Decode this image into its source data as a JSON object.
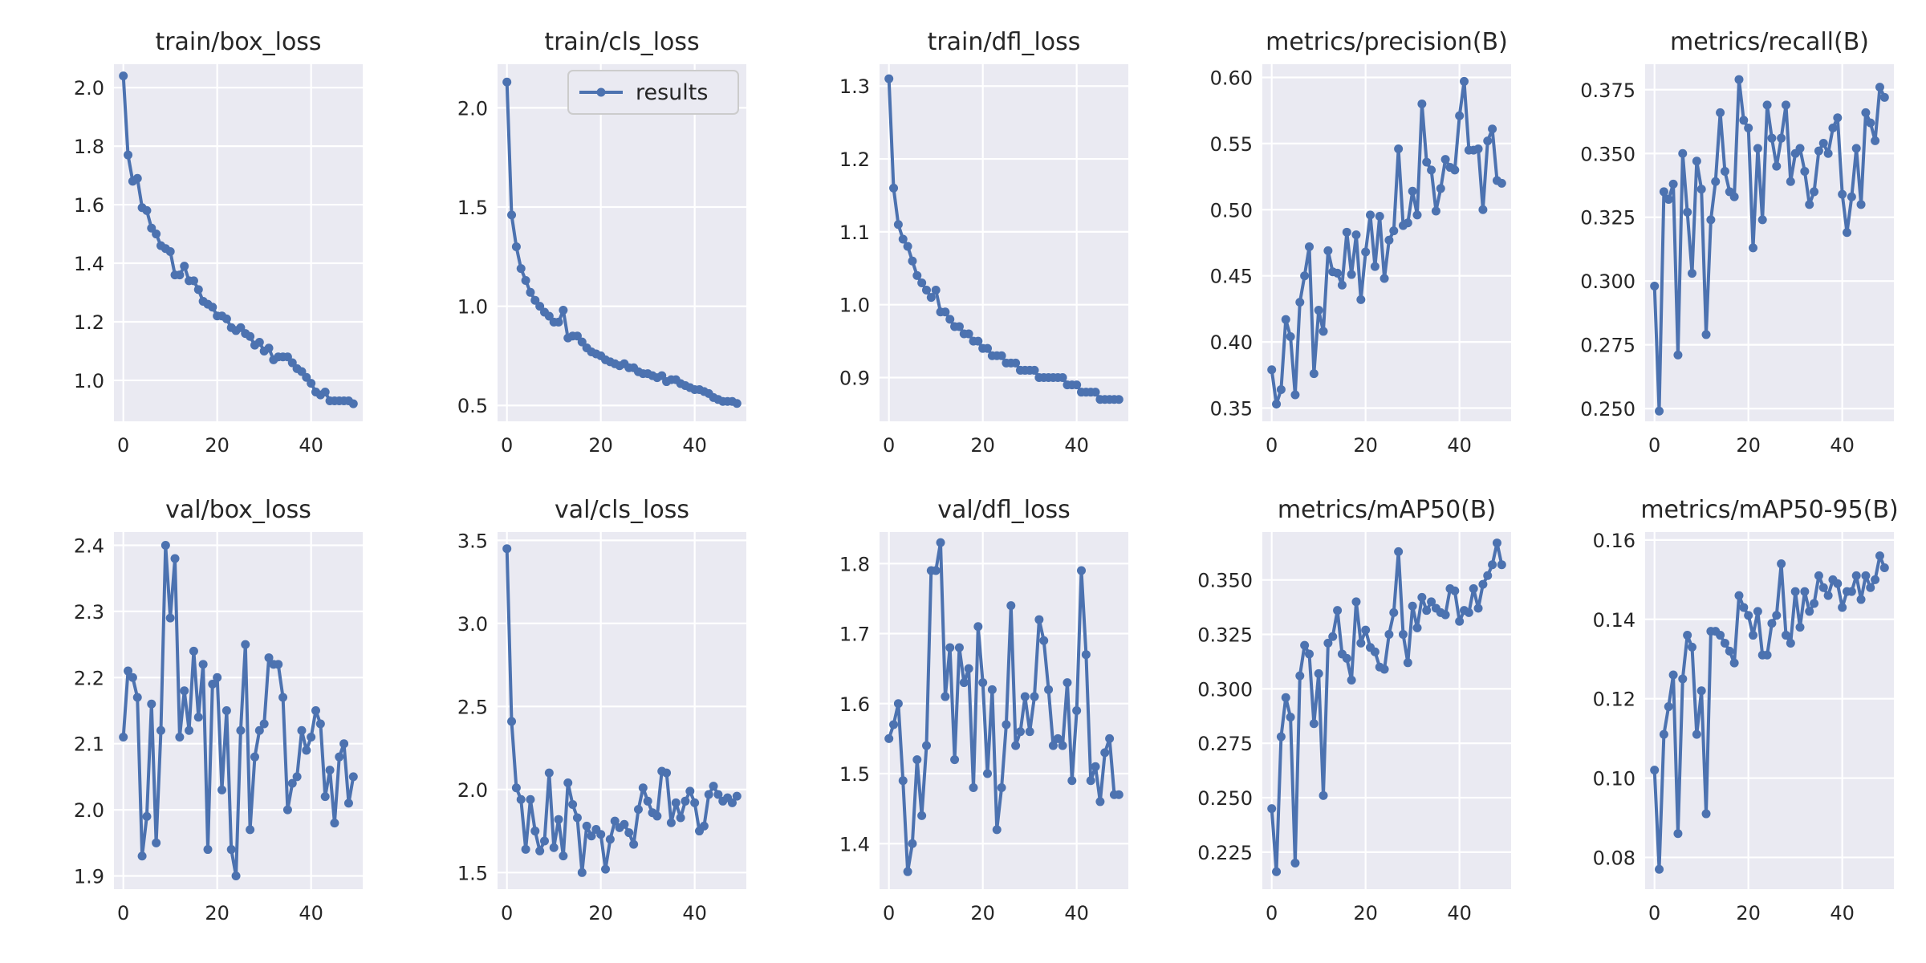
{
  "style": {
    "plot_bg": "#eaeaf2",
    "grid": "#ffffff",
    "line_color": "#4c72b0",
    "text_color": "#262626"
  },
  "legend": {
    "label": "results",
    "placement": "upper right",
    "panel": 1
  },
  "chart_data": [
    {
      "type": "line",
      "title": "train/box_loss",
      "xlabel": "",
      "ylabel": "",
      "xlim": [
        -2,
        51
      ],
      "ylim": [
        0.86,
        2.08
      ],
      "xticks": [
        0,
        20,
        40
      ],
      "xtick_labels": [
        "0",
        "20",
        "40"
      ],
      "yticks": [
        1.0,
        1.2,
        1.4,
        1.6,
        1.8,
        2.0
      ],
      "ytick_labels": [
        "1.0",
        "1.2",
        "1.4",
        "1.6",
        "1.8",
        "2.0"
      ],
      "series": [
        {
          "name": "results",
          "values": [
            2.04,
            1.77,
            1.68,
            1.69,
            1.59,
            1.58,
            1.52,
            1.5,
            1.46,
            1.45,
            1.44,
            1.36,
            1.36,
            1.39,
            1.34,
            1.34,
            1.31,
            1.27,
            1.26,
            1.25,
            1.22,
            1.22,
            1.21,
            1.18,
            1.17,
            1.18,
            1.16,
            1.15,
            1.12,
            1.13,
            1.1,
            1.11,
            1.07,
            1.08,
            1.08,
            1.08,
            1.06,
            1.04,
            1.03,
            1.01,
            0.99,
            0.96,
            0.95,
            0.96,
            0.93,
            0.93,
            0.93,
            0.93,
            0.93,
            0.92
          ]
        }
      ]
    },
    {
      "type": "line",
      "title": "train/cls_loss",
      "xlabel": "",
      "ylabel": "",
      "xlim": [
        -2,
        51
      ],
      "ylim": [
        0.42,
        2.22
      ],
      "xticks": [
        0,
        20,
        40
      ],
      "xtick_labels": [
        "0",
        "20",
        "40"
      ],
      "yticks": [
        0.5,
        1.0,
        1.5,
        2.0
      ],
      "ytick_labels": [
        "0.5",
        "1.0",
        "1.5",
        "2.0"
      ],
      "series": [
        {
          "name": "results",
          "values": [
            2.13,
            1.46,
            1.3,
            1.19,
            1.13,
            1.07,
            1.03,
            1.0,
            0.97,
            0.95,
            0.92,
            0.92,
            0.98,
            0.84,
            0.85,
            0.85,
            0.82,
            0.79,
            0.77,
            0.76,
            0.75,
            0.73,
            0.72,
            0.71,
            0.7,
            0.71,
            0.69,
            0.69,
            0.67,
            0.66,
            0.66,
            0.65,
            0.64,
            0.65,
            0.62,
            0.63,
            0.63,
            0.61,
            0.6,
            0.59,
            0.58,
            0.58,
            0.57,
            0.56,
            0.54,
            0.53,
            0.52,
            0.52,
            0.52,
            0.51
          ]
        }
      ]
    },
    {
      "type": "line",
      "title": "train/dfl_loss",
      "xlabel": "",
      "ylabel": "",
      "xlim": [
        -2,
        51
      ],
      "ylim": [
        0.84,
        1.33
      ],
      "xticks": [
        0,
        20,
        40
      ],
      "xtick_labels": [
        "0",
        "20",
        "40"
      ],
      "yticks": [
        0.9,
        1.0,
        1.1,
        1.2,
        1.3
      ],
      "ytick_labels": [
        "0.9",
        "1.0",
        "1.1",
        "1.2",
        "1.3"
      ],
      "series": [
        {
          "name": "results",
          "values": [
            1.31,
            1.16,
            1.11,
            1.09,
            1.08,
            1.06,
            1.04,
            1.03,
            1.02,
            1.01,
            1.02,
            0.99,
            0.99,
            0.98,
            0.97,
            0.97,
            0.96,
            0.96,
            0.95,
            0.95,
            0.94,
            0.94,
            0.93,
            0.93,
            0.93,
            0.92,
            0.92,
            0.92,
            0.91,
            0.91,
            0.91,
            0.91,
            0.9,
            0.9,
            0.9,
            0.9,
            0.9,
            0.9,
            0.89,
            0.89,
            0.89,
            0.88,
            0.88,
            0.88,
            0.88,
            0.87,
            0.87,
            0.87,
            0.87,
            0.87
          ]
        }
      ]
    },
    {
      "type": "line",
      "title": "metrics/precision(B)",
      "xlabel": "",
      "ylabel": "",
      "xlim": [
        -2,
        51
      ],
      "ylim": [
        0.34,
        0.61
      ],
      "xticks": [
        0,
        20,
        40
      ],
      "xtick_labels": [
        "0",
        "20",
        "40"
      ],
      "yticks": [
        0.35,
        0.4,
        0.45,
        0.5,
        0.55,
        0.6
      ],
      "ytick_labels": [
        "0.35",
        "0.40",
        "0.45",
        "0.50",
        "0.55",
        "0.60"
      ],
      "series": [
        {
          "name": "results",
          "values": [
            0.379,
            0.353,
            0.364,
            0.417,
            0.404,
            0.36,
            0.43,
            0.45,
            0.472,
            0.376,
            0.424,
            0.408,
            0.469,
            0.453,
            0.452,
            0.443,
            0.483,
            0.451,
            0.481,
            0.432,
            0.468,
            0.496,
            0.457,
            0.495,
            0.448,
            0.477,
            0.484,
            0.546,
            0.488,
            0.49,
            0.514,
            0.496,
            0.58,
            0.536,
            0.53,
            0.499,
            0.516,
            0.538,
            0.532,
            0.53,
            0.571,
            0.597,
            0.545,
            0.545,
            0.546,
            0.5,
            0.552,
            0.561,
            0.522,
            0.52
          ]
        }
      ]
    },
    {
      "type": "line",
      "title": "metrics/recall(B)",
      "xlabel": "",
      "ylabel": "",
      "xlim": [
        -2,
        51
      ],
      "ylim": [
        0.245,
        0.385
      ],
      "xticks": [
        0,
        20,
        40
      ],
      "xtick_labels": [
        "0",
        "20",
        "40"
      ],
      "yticks": [
        0.25,
        0.275,
        0.3,
        0.325,
        0.35,
        0.375
      ],
      "ytick_labels": [
        "0.250",
        "0.275",
        "0.300",
        "0.325",
        "0.350",
        "0.375"
      ],
      "series": [
        {
          "name": "results",
          "values": [
            0.298,
            0.249,
            0.335,
            0.332,
            0.338,
            0.271,
            0.35,
            0.327,
            0.303,
            0.347,
            0.336,
            0.279,
            0.324,
            0.339,
            0.366,
            0.343,
            0.335,
            0.333,
            0.379,
            0.363,
            0.36,
            0.313,
            0.352,
            0.324,
            0.369,
            0.356,
            0.345,
            0.356,
            0.369,
            0.339,
            0.35,
            0.352,
            0.343,
            0.33,
            0.335,
            0.351,
            0.354,
            0.35,
            0.36,
            0.364,
            0.334,
            0.319,
            0.333,
            0.352,
            0.33,
            0.366,
            0.362,
            0.355,
            0.376,
            0.372
          ]
        }
      ]
    },
    {
      "type": "line",
      "title": "val/box_loss",
      "xlabel": "",
      "ylabel": "",
      "xlim": [
        -2,
        51
      ],
      "ylim": [
        1.88,
        2.42
      ],
      "xticks": [
        0,
        20,
        40
      ],
      "xtick_labels": [
        "0",
        "20",
        "40"
      ],
      "yticks": [
        1.9,
        2.0,
        2.1,
        2.2,
        2.3,
        2.4
      ],
      "ytick_labels": [
        "1.9",
        "2.0",
        "2.1",
        "2.2",
        "2.3",
        "2.4"
      ],
      "series": [
        {
          "name": "results",
          "values": [
            2.11,
            2.21,
            2.2,
            2.17,
            1.93,
            1.99,
            2.16,
            1.95,
            2.12,
            2.4,
            2.29,
            2.38,
            2.11,
            2.18,
            2.12,
            2.24,
            2.14,
            2.22,
            1.94,
            2.19,
            2.2,
            2.03,
            2.15,
            1.94,
            1.9,
            2.12,
            2.25,
            1.97,
            2.08,
            2.12,
            2.13,
            2.23,
            2.22,
            2.22,
            2.17,
            2.0,
            2.04,
            2.05,
            2.12,
            2.09,
            2.11,
            2.15,
            2.13,
            2.02,
            2.06,
            1.98,
            2.08,
            2.1,
            2.01,
            2.05
          ]
        }
      ]
    },
    {
      "type": "line",
      "title": "val/cls_loss",
      "xlabel": "",
      "ylabel": "",
      "xlim": [
        -2,
        51
      ],
      "ylim": [
        1.4,
        3.55
      ],
      "xticks": [
        0,
        20,
        40
      ],
      "xtick_labels": [
        "0",
        "20",
        "40"
      ],
      "yticks": [
        1.5,
        2.0,
        2.5,
        3.0,
        3.5
      ],
      "ytick_labels": [
        "1.5",
        "2.0",
        "2.5",
        "3.0",
        "3.5"
      ],
      "series": [
        {
          "name": "results",
          "values": [
            3.45,
            2.41,
            2.01,
            1.94,
            1.64,
            1.94,
            1.75,
            1.63,
            1.69,
            2.1,
            1.65,
            1.82,
            1.6,
            2.04,
            1.91,
            1.83,
            1.5,
            1.78,
            1.72,
            1.76,
            1.73,
            1.52,
            1.7,
            1.81,
            1.77,
            1.79,
            1.74,
            1.67,
            1.88,
            2.01,
            1.93,
            1.86,
            1.84,
            2.11,
            2.1,
            1.8,
            1.92,
            1.83,
            1.93,
            1.99,
            1.92,
            1.75,
            1.78,
            1.97,
            2.02,
            1.97,
            1.93,
            1.95,
            1.92,
            1.96
          ]
        }
      ]
    },
    {
      "type": "line",
      "title": "val/dfl_loss",
      "xlabel": "",
      "ylabel": "",
      "xlim": [
        -2,
        51
      ],
      "ylim": [
        1.335,
        1.845
      ],
      "xticks": [
        0,
        20,
        40
      ],
      "xtick_labels": [
        "0",
        "20",
        "40"
      ],
      "yticks": [
        1.4,
        1.5,
        1.6,
        1.7,
        1.8
      ],
      "ytick_labels": [
        "1.4",
        "1.5",
        "1.6",
        "1.7",
        "1.8"
      ],
      "series": [
        {
          "name": "results",
          "values": [
            1.55,
            1.57,
            1.6,
            1.49,
            1.36,
            1.4,
            1.52,
            1.44,
            1.54,
            1.79,
            1.79,
            1.83,
            1.61,
            1.68,
            1.52,
            1.68,
            1.63,
            1.65,
            1.48,
            1.71,
            1.63,
            1.5,
            1.62,
            1.42,
            1.48,
            1.57,
            1.74,
            1.54,
            1.56,
            1.61,
            1.56,
            1.61,
            1.72,
            1.69,
            1.62,
            1.54,
            1.55,
            1.54,
            1.63,
            1.49,
            1.59,
            1.79,
            1.67,
            1.49,
            1.51,
            1.46,
            1.53,
            1.55,
            1.47,
            1.47
          ]
        }
      ]
    },
    {
      "type": "line",
      "title": "metrics/mAP50(B)",
      "xlabel": "",
      "ylabel": "",
      "xlim": [
        -2,
        51
      ],
      "ylim": [
        0.208,
        0.372
      ],
      "xticks": [
        0,
        20,
        40
      ],
      "xtick_labels": [
        "0",
        "20",
        "40"
      ],
      "yticks": [
        0.225,
        0.25,
        0.275,
        0.3,
        0.325,
        0.35
      ],
      "ytick_labels": [
        "0.225",
        "0.250",
        "0.275",
        "0.300",
        "0.325",
        "0.350"
      ],
      "series": [
        {
          "name": "results",
          "values": [
            0.245,
            0.216,
            0.278,
            0.296,
            0.287,
            0.22,
            0.306,
            0.32,
            0.316,
            0.284,
            0.307,
            0.251,
            0.321,
            0.324,
            0.336,
            0.316,
            0.314,
            0.304,
            0.34,
            0.321,
            0.327,
            0.319,
            0.317,
            0.31,
            0.309,
            0.325,
            0.335,
            0.363,
            0.325,
            0.312,
            0.338,
            0.328,
            0.342,
            0.336,
            0.34,
            0.337,
            0.335,
            0.334,
            0.346,
            0.345,
            0.331,
            0.336,
            0.335,
            0.346,
            0.337,
            0.348,
            0.352,
            0.357,
            0.367,
            0.357
          ]
        }
      ]
    },
    {
      "type": "line",
      "title": "metrics/mAP50-95(B)",
      "xlabel": "",
      "ylabel": "",
      "xlim": [
        -2,
        51
      ],
      "ylim": [
        0.072,
        0.162
      ],
      "xticks": [
        0,
        20,
        40
      ],
      "xtick_labels": [
        "0",
        "20",
        "40"
      ],
      "yticks": [
        0.08,
        0.1,
        0.12,
        0.14,
        0.16
      ],
      "ytick_labels": [
        "0.08",
        "0.10",
        "0.12",
        "0.14",
        "0.16"
      ],
      "series": [
        {
          "name": "results",
          "values": [
            0.102,
            0.077,
            0.111,
            0.118,
            0.126,
            0.086,
            0.125,
            0.136,
            0.133,
            0.111,
            0.122,
            0.091,
            0.137,
            0.137,
            0.136,
            0.134,
            0.132,
            0.129,
            0.146,
            0.143,
            0.141,
            0.136,
            0.142,
            0.131,
            0.131,
            0.139,
            0.141,
            0.154,
            0.136,
            0.134,
            0.147,
            0.138,
            0.147,
            0.142,
            0.144,
            0.151,
            0.148,
            0.146,
            0.15,
            0.149,
            0.143,
            0.147,
            0.147,
            0.151,
            0.145,
            0.151,
            0.148,
            0.15,
            0.156,
            0.153
          ]
        }
      ]
    }
  ]
}
